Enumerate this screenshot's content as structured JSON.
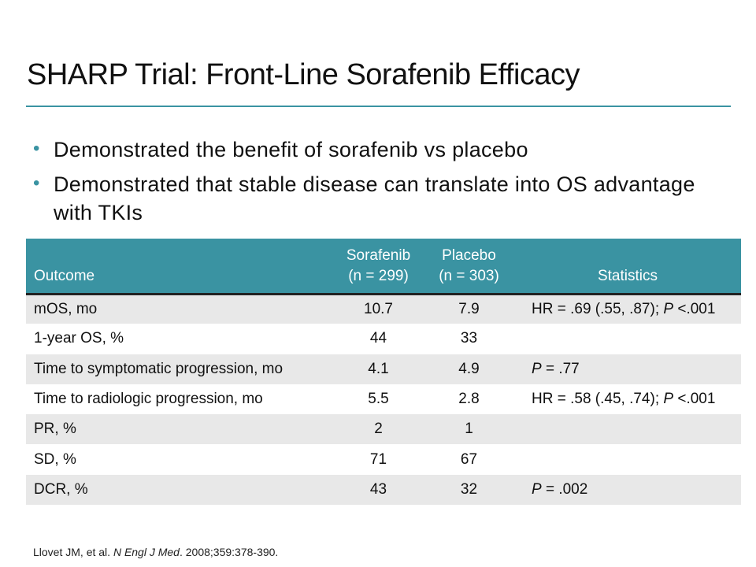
{
  "title": "SHARP Trial: Front-Line Sorafenib Efficacy",
  "bullets": [
    "Demonstrated the benefit of sorafenib vs placebo",
    "Demonstrated that stable disease can translate into OS advantage with TKIs"
  ],
  "table": {
    "headers": {
      "outcome": "Outcome",
      "sorafenib": [
        "Sorafenib",
        "(n = 299)"
      ],
      "placebo": [
        "Placebo",
        "(n = 303)"
      ],
      "statistics": "Statistics"
    },
    "rows": [
      {
        "outcome": "mOS, mo",
        "sorafenib": "10.7",
        "placebo": "7.9",
        "stat": {
          "pre": "HR = .69 (.55, .87); ",
          "p": "P",
          "post": " <.001"
        }
      },
      {
        "outcome": "1-year OS, %",
        "sorafenib": "44",
        "placebo": "33",
        "stat": {
          "pre": "",
          "p": "",
          "post": ""
        }
      },
      {
        "outcome": "Time to symptomatic progression, mo",
        "sorafenib": "4.1",
        "placebo": "4.9",
        "stat": {
          "pre": "",
          "p": "P",
          "post": " = .77"
        }
      },
      {
        "outcome": "Time to radiologic progression, mo",
        "sorafenib": "5.5",
        "placebo": "2.8",
        "stat": {
          "pre": "HR = .58 (.45, .74); ",
          "p": "P",
          "post": " <.001"
        }
      },
      {
        "outcome": "PR, %",
        "sorafenib": "2",
        "placebo": "1",
        "stat": {
          "pre": "",
          "p": "",
          "post": ""
        }
      },
      {
        "outcome": "SD, %",
        "sorafenib": "71",
        "placebo": "67",
        "stat": {
          "pre": "",
          "p": "",
          "post": ""
        }
      },
      {
        "outcome": "DCR, %",
        "sorafenib": "43",
        "placebo": "32",
        "stat": {
          "pre": "",
          "p": "P",
          "post": " = .002"
        }
      }
    ]
  },
  "reference": {
    "authors": "Llovet JM, et al. ",
    "journal": "N Engl J Med",
    "rest": ". 2008;359:378-390."
  },
  "colors": {
    "accent": "#3a93a2",
    "stripe": "#e8e8e8"
  }
}
